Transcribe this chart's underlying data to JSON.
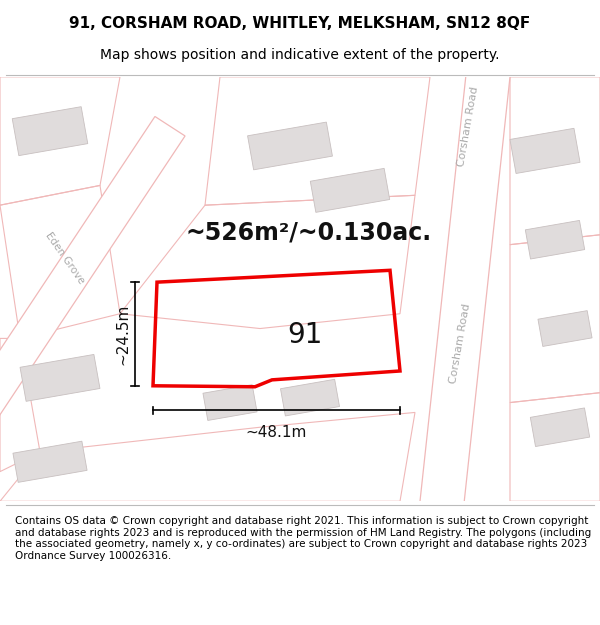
{
  "title": "91, CORSHAM ROAD, WHITLEY, MELKSHAM, SN12 8QF",
  "subtitle": "Map shows position and indicative extent of the property.",
  "footer": "Contains OS data © Crown copyright and database right 2021. This information is subject to Crown copyright and database rights 2023 and is reproduced with the permission of HM Land Registry. The polygons (including the associated geometry, namely x, y co-ordinates) are subject to Crown copyright and database rights 2023 Ordnance Survey 100026316.",
  "area_label": "~526m²/~0.130ac.",
  "dim_width": "~48.1m",
  "dim_height": "~24.5m",
  "number_label": "91",
  "map_bg": "#ffffff",
  "road_fill": "#ffffff",
  "road_stroke": "#f0b8b8",
  "building_fill": "#e0dcdc",
  "building_stroke": "#c8c0c0",
  "plot_stroke": "#ee0000",
  "dim_color": "#111111",
  "road_label_color": "#aaaaaa",
  "title_fontsize": 11,
  "subtitle_fontsize": 10,
  "footer_fontsize": 7.5,
  "area_fontsize": 17,
  "num_fontsize": 20,
  "dim_fontsize": 11,
  "road_lw": 0.9,
  "plot_lw": 2.5
}
